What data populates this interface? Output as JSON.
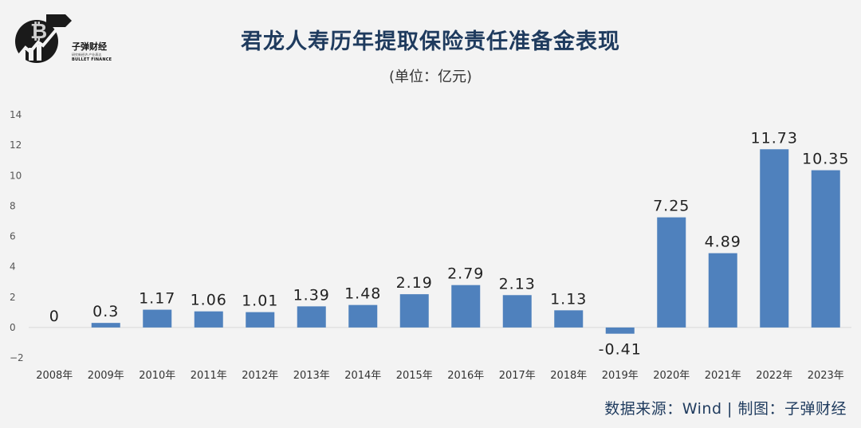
{
  "logo": {
    "name": "子弹财经",
    "sub": "研究新经济 产业表达",
    "english": "BULLET FINANCE"
  },
  "source_text": "数据来源：Wind  |  制图：子弹财经",
  "colors": {
    "bar": "#4f81bd",
    "title": "#1f3b5e"
  },
  "chart_data": {
    "type": "bar",
    "title": "君龙人寿历年提取保险责任准备金表现",
    "subtitle": "(单位：亿元)",
    "categories": [
      "2008年",
      "2009年",
      "2010年",
      "2011年",
      "2012年",
      "2013年",
      "2014年",
      "2015年",
      "2016年",
      "2017年",
      "2018年",
      "2019年",
      "2020年",
      "2021年",
      "2022年",
      "2023年"
    ],
    "values": [
      0,
      0.3,
      1.17,
      1.06,
      1.01,
      1.39,
      1.48,
      2.19,
      2.79,
      2.13,
      1.13,
      -0.41,
      7.25,
      4.89,
      11.73,
      10.35
    ],
    "data_labels": [
      "0",
      "0.3",
      "1.17",
      "1.06",
      "1.01",
      "1.39",
      "1.48",
      "2.19",
      "2.79",
      "2.13",
      "1.13",
      "-0.41",
      "7.25",
      "4.89",
      "11.73",
      "10.35"
    ],
    "yticks": [
      -2,
      0,
      2,
      4,
      6,
      8,
      10,
      12,
      14
    ],
    "ylim": [
      -2,
      14
    ],
    "xlabel": "",
    "ylabel": "",
    "grid": false
  }
}
